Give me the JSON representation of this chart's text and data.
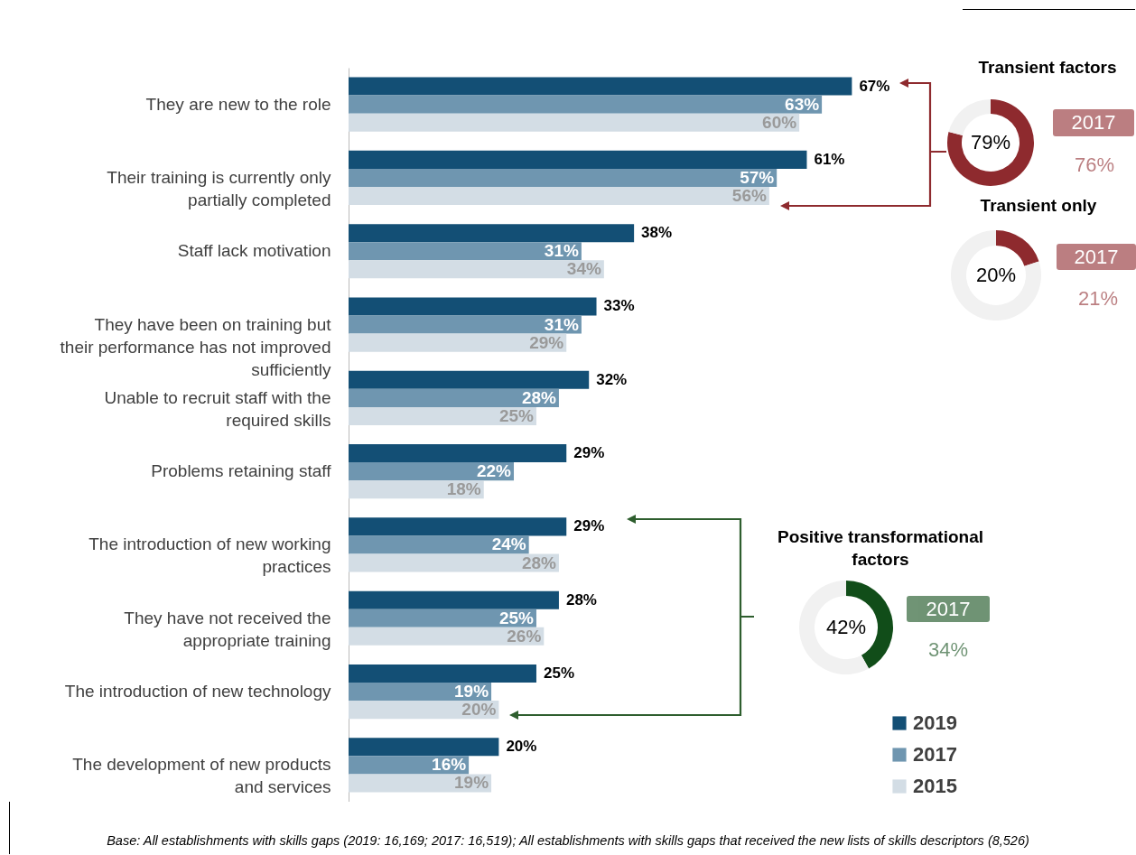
{
  "chart_data": [
    {
      "type": "bar",
      "orientation": "horizontal",
      "categories": [
        "They are new to the role",
        "Their training is currently only partially completed",
        "Staff lack motivation",
        "They have been on training but their performance has not improved sufficiently",
        "Unable to recruit staff with the required skills",
        "Problems retaining staff",
        "The introduction of new working practices",
        "They have not received the appropriate training",
        "The introduction of new technology",
        "The development of new products and services"
      ],
      "series": [
        {
          "name": "2019",
          "color": "#134f75",
          "values": [
            67,
            61,
            38,
            33,
            32,
            29,
            29,
            28,
            25,
            20
          ],
          "value_labels": [
            "67%",
            "61%",
            "38%",
            "33%",
            "32%",
            "29%",
            "29%",
            "28%",
            "25%",
            "20%"
          ]
        },
        {
          "name": "2017",
          "color": "#6f96b0",
          "values": [
            63,
            57,
            31,
            31,
            28,
            22,
            24,
            25,
            19,
            16
          ],
          "value_labels": [
            "63%",
            "57%",
            "31%",
            "31%",
            "28%",
            "22%",
            "24%",
            "25%",
            "19%",
            "16%"
          ]
        },
        {
          "name": "2015",
          "color": "#d3dde5",
          "values": [
            60,
            56,
            34,
            29,
            25,
            18,
            28,
            26,
            20,
            19
          ],
          "value_labels": [
            "60%",
            "56%",
            "34%",
            "29%",
            "25%",
            "18%",
            "28%",
            "26%",
            "20%",
            "19%"
          ]
        }
      ],
      "legend": "bottom right",
      "annotations": [
        "Base: All establishments with skills gaps (2019: 16,169; 2017: 16,519); All establishments with skills gaps that received the new lists of skills descriptors (8,526)"
      ]
    },
    {
      "type": "donut",
      "title": "Transient factors",
      "categories": [
        null,
        null
      ],
      "values": [
        79,
        21
      ],
      "colors": [
        "#8e2a2e",
        "#f1f1f1"
      ],
      "value_labels": [
        "79%",
        null
      ],
      "annotations": [
        "2017",
        "76%"
      ]
    },
    {
      "type": "donut",
      "title": "Transient only",
      "categories": [
        null,
        null
      ],
      "values": [
        20,
        80
      ],
      "colors": [
        "#8e2a2e",
        "#f1f1f1"
      ],
      "value_labels": [
        "20%",
        null
      ],
      "annotations": [
        "2017",
        "21%"
      ]
    },
    {
      "type": "donut",
      "title": "Positive transformational factors",
      "categories": [
        null,
        null
      ],
      "values": [
        42,
        58
      ],
      "colors": [
        "#114d19",
        "#f1f1f1"
      ],
      "value_labels": [
        "42%",
        null
      ],
      "annotations": [
        "2017",
        "34%"
      ]
    }
  ]
}
